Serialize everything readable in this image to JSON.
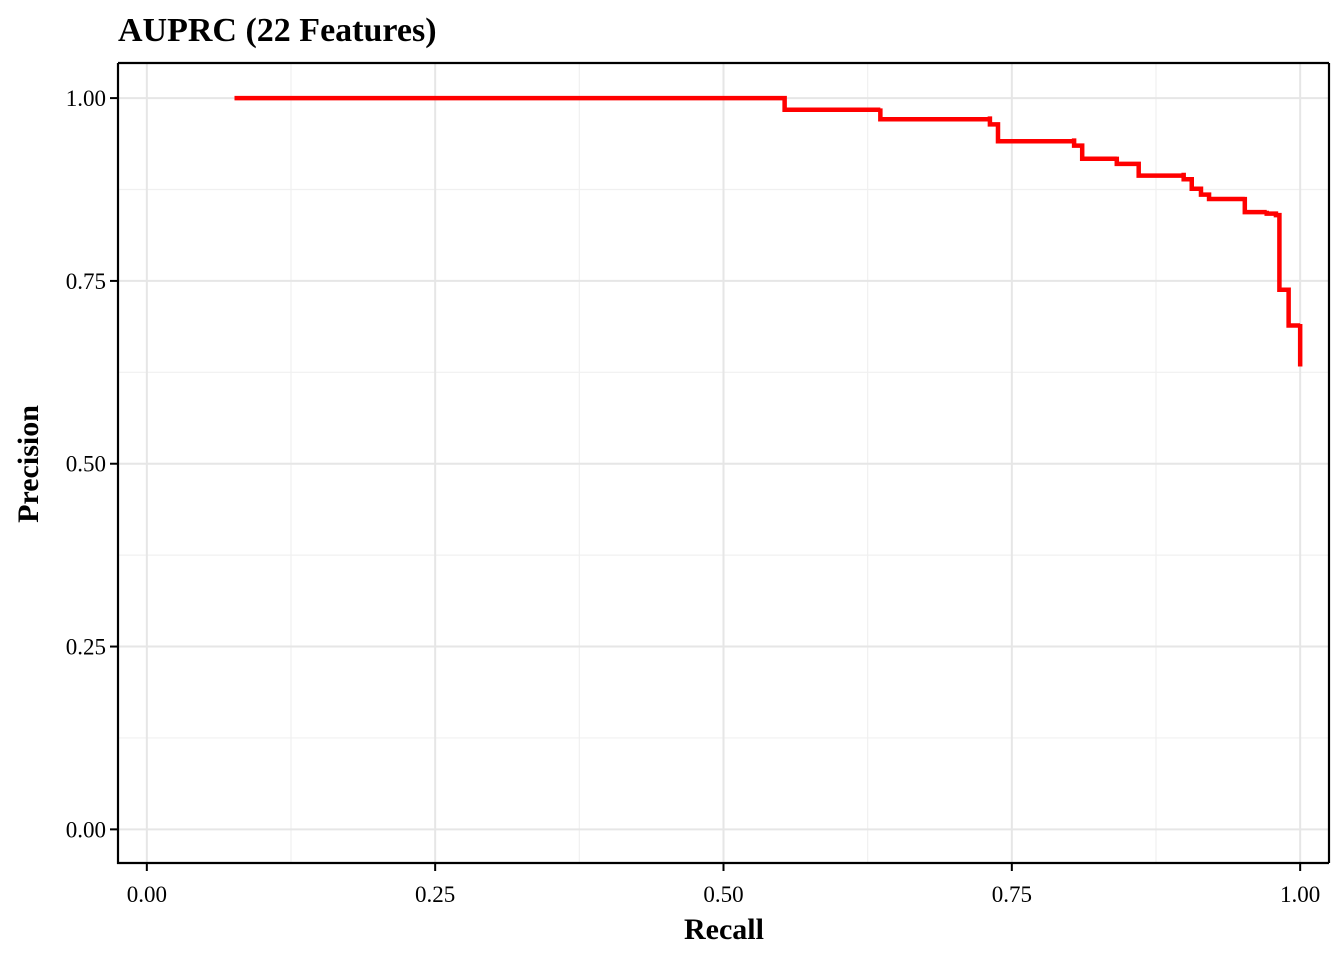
{
  "chart_data": {
    "type": "line",
    "title": "AUPRC (22 Features)",
    "xlabel": "Recall",
    "ylabel": "Precision",
    "xlim": [
      -0.025,
      1.025
    ],
    "ylim": [
      -0.046,
      1.048
    ],
    "x_ticks": [
      0.0,
      0.25,
      0.5,
      0.75,
      1.0
    ],
    "x_tick_labels": [
      "0.00",
      "0.25",
      "0.50",
      "0.75",
      "1.00"
    ],
    "y_ticks": [
      0.0,
      0.25,
      0.5,
      0.75,
      1.0
    ],
    "y_tick_labels": [
      "0.00",
      "0.25",
      "0.50",
      "0.75",
      "1.00"
    ],
    "x_minor": [
      0.125,
      0.375,
      0.625,
      0.875
    ],
    "y_minor": [
      0.125,
      0.375,
      0.625,
      0.875
    ],
    "grid": true,
    "legend": "none",
    "colors": {
      "line": "#ff0000"
    },
    "series": [
      {
        "step": "hv",
        "x": [
          0.076,
          0.553,
          0.553,
          0.636,
          0.636,
          0.731,
          0.731,
          0.738,
          0.738,
          0.804,
          0.804,
          0.811,
          0.811,
          0.841,
          0.841,
          0.86,
          0.86,
          0.899,
          0.899,
          0.906,
          0.906,
          0.914,
          0.914,
          0.921,
          0.921,
          0.952,
          0.952,
          0.971,
          0.971,
          0.979,
          0.979,
          0.982,
          0.982,
          0.99,
          0.99,
          1.0,
          1.0
        ],
        "y": [
          1.0,
          1.0,
          0.984,
          0.986,
          0.971,
          0.975,
          0.964,
          0.964,
          0.941,
          0.945,
          0.935,
          0.935,
          0.917,
          0.92,
          0.91,
          0.91,
          0.894,
          0.898,
          0.889,
          0.889,
          0.876,
          0.876,
          0.868,
          0.868,
          0.862,
          0.865,
          0.844,
          0.846,
          0.842,
          0.842,
          0.84,
          0.84,
          0.738,
          0.736,
          0.689,
          0.691,
          0.633
        ]
      }
    ]
  }
}
